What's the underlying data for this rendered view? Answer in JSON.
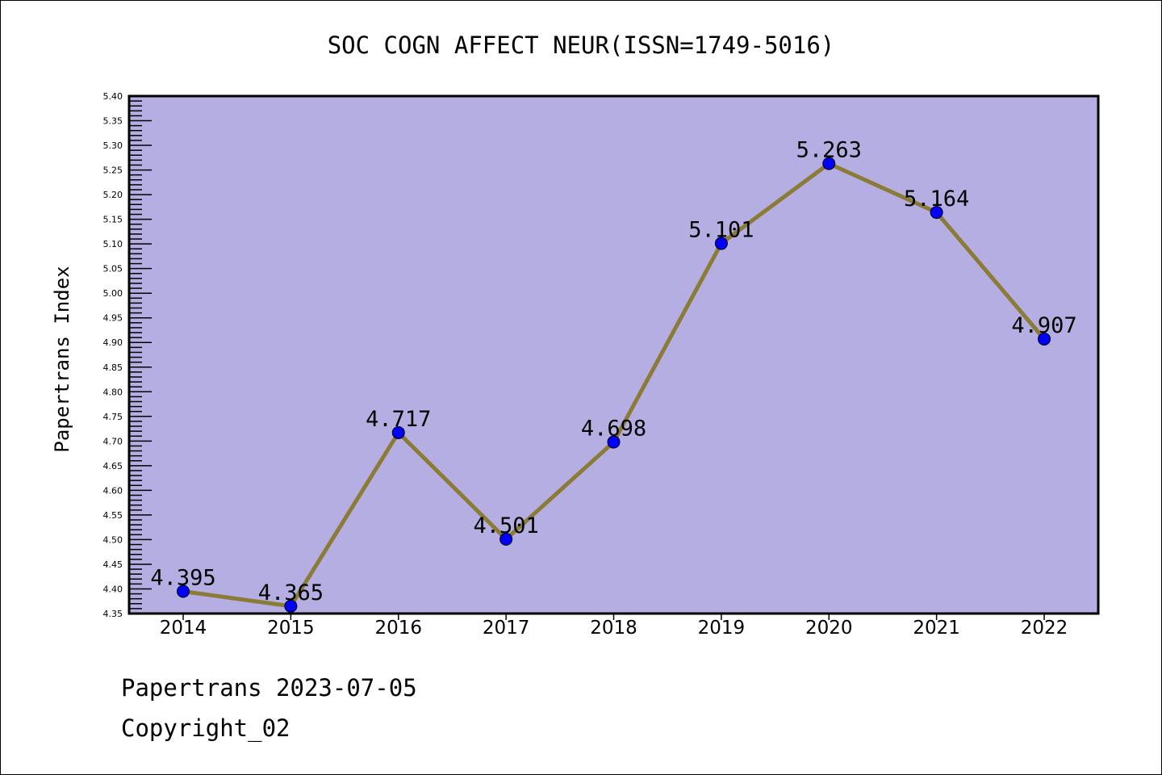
{
  "chart_data": {
    "type": "line",
    "title": "SOC COGN AFFECT NEUR(ISSN=1749-5016)",
    "xlabel": "",
    "ylabel": "Papertrans Index",
    "categories": [
      "2014",
      "2015",
      "2016",
      "2017",
      "2018",
      "2019",
      "2020",
      "2021",
      "2022"
    ],
    "series": [
      {
        "name": "Papertrans Index",
        "values": [
          4.395,
          4.365,
          4.717,
          4.501,
          4.698,
          5.101,
          5.263,
          5.164,
          4.907
        ]
      }
    ],
    "data_labels": [
      "4.395",
      "4.365",
      "4.717",
      "4.501",
      "4.698",
      "5.101",
      "5.263",
      "5.164",
      "4.907"
    ],
    "ylim": [
      4.35,
      5.4
    ],
    "ytick_step": 0.05,
    "grid": false,
    "legend": "none",
    "colors": {
      "background": "#b4aee2",
      "line": "#8b7b35",
      "marker": "#0000ff"
    }
  },
  "footer": {
    "line1": "Papertrans 2023-07-05",
    "line2": "Copyright_02"
  }
}
